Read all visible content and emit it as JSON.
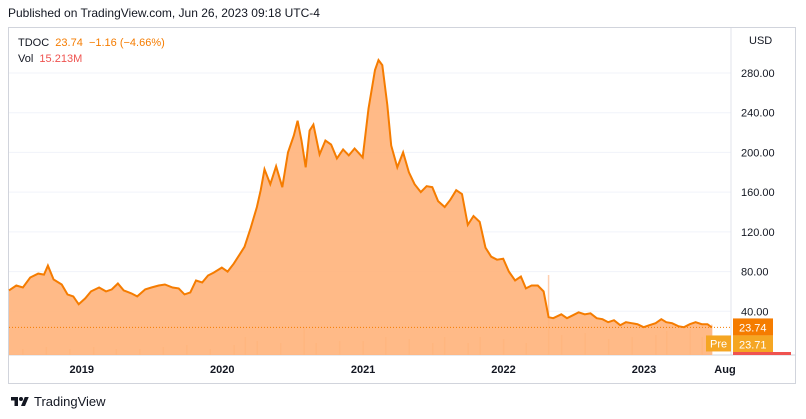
{
  "header": {
    "published": "Published on TradingView.com, Jun 26, 2023 09:18 UTC-4"
  },
  "legend": {
    "symbol": "TDOC",
    "price": "23.74",
    "change": "−1.16 (−4.66%)",
    "vol_label": "Vol",
    "vol_value": "15.213M"
  },
  "footer": {
    "brand": "TradingView"
  },
  "colors": {
    "line": "#f57c00",
    "fill": "#ffb27a",
    "pre": "#f5a623",
    "bar": "#ffcfae",
    "last_price": "#f57c00"
  },
  "chart_data": {
    "type": "area",
    "currency_label": "USD",
    "y_ticks": [
      "40.00",
      "80.00",
      "120.00",
      "160.00",
      "200.00",
      "240.00",
      "280.00"
    ],
    "x_ticks": [
      "2019",
      "2020",
      "2021",
      "2022",
      "2023",
      "Aug"
    ],
    "ylim": [
      0,
      320
    ],
    "last_price": {
      "label": "23.74",
      "value": 23.74
    },
    "premarket": {
      "label": "Pre",
      "price_label": "23.71",
      "value": 23.71
    },
    "series": [
      {
        "values": [
          [
            "2018-06-26",
            61
          ],
          [
            "2018-07-15",
            66
          ],
          [
            "2018-08-01",
            64
          ],
          [
            "2018-08-20",
            74
          ],
          [
            "2018-09-10",
            78
          ],
          [
            "2018-09-25",
            77
          ],
          [
            "2018-10-05",
            86
          ],
          [
            "2018-10-20",
            72
          ],
          [
            "2018-11-10",
            67
          ],
          [
            "2018-11-25",
            57
          ],
          [
            "2018-12-10",
            55
          ],
          [
            "2018-12-24",
            47
          ],
          [
            "2019-01-10",
            53
          ],
          [
            "2019-01-25",
            60
          ],
          [
            "2019-02-15",
            64
          ],
          [
            "2019-03-05",
            60
          ],
          [
            "2019-03-20",
            62
          ],
          [
            "2019-04-05",
            68
          ],
          [
            "2019-04-20",
            61
          ],
          [
            "2019-05-10",
            58
          ],
          [
            "2019-05-25",
            55
          ],
          [
            "2019-06-15",
            62
          ],
          [
            "2019-07-01",
            64
          ],
          [
            "2019-07-20",
            66
          ],
          [
            "2019-08-05",
            67
          ],
          [
            "2019-08-25",
            64
          ],
          [
            "2019-09-10",
            63
          ],
          [
            "2019-09-25",
            57
          ],
          [
            "2019-10-10",
            59
          ],
          [
            "2019-10-25",
            71
          ],
          [
            "2019-11-10",
            69
          ],
          [
            "2019-11-25",
            76
          ],
          [
            "2019-12-10",
            79
          ],
          [
            "2019-12-31",
            84
          ],
          [
            "2020-01-15",
            80
          ],
          [
            "2020-01-31",
            88
          ],
          [
            "2020-02-15",
            97
          ],
          [
            "2020-02-28",
            105
          ],
          [
            "2020-03-15",
            124
          ],
          [
            "2020-03-31",
            145
          ],
          [
            "2020-04-10",
            162
          ],
          [
            "2020-04-20",
            183
          ],
          [
            "2020-05-05",
            168
          ],
          [
            "2020-05-20",
            186
          ],
          [
            "2020-06-05",
            165
          ],
          [
            "2020-06-20",
            200
          ],
          [
            "2020-07-05",
            217
          ],
          [
            "2020-07-15",
            232
          ],
          [
            "2020-07-25",
            212
          ],
          [
            "2020-08-05",
            185
          ],
          [
            "2020-08-15",
            222
          ],
          [
            "2020-08-25",
            228
          ],
          [
            "2020-09-10",
            198
          ],
          [
            "2020-09-25",
            212
          ],
          [
            "2020-10-10",
            208
          ],
          [
            "2020-10-25",
            194
          ],
          [
            "2020-11-10",
            203
          ],
          [
            "2020-11-25",
            197
          ],
          [
            "2020-12-10",
            204
          ],
          [
            "2020-12-31",
            195
          ],
          [
            "2021-01-15",
            244
          ],
          [
            "2021-02-01",
            283
          ],
          [
            "2021-02-10",
            293
          ],
          [
            "2021-02-20",
            288
          ],
          [
            "2021-03-05",
            248
          ],
          [
            "2021-03-15",
            207
          ],
          [
            "2021-03-31",
            185
          ],
          [
            "2021-04-15",
            200
          ],
          [
            "2021-04-30",
            180
          ],
          [
            "2021-05-15",
            168
          ],
          [
            "2021-05-31",
            160
          ],
          [
            "2021-06-15",
            166
          ],
          [
            "2021-06-30",
            165
          ],
          [
            "2021-07-15",
            151
          ],
          [
            "2021-08-01",
            145
          ],
          [
            "2021-08-15",
            152
          ],
          [
            "2021-08-31",
            162
          ],
          [
            "2021-09-15",
            158
          ],
          [
            "2021-09-30",
            127
          ],
          [
            "2021-10-15",
            136
          ],
          [
            "2021-10-31",
            130
          ],
          [
            "2021-11-15",
            104
          ],
          [
            "2021-11-30",
            95
          ],
          [
            "2021-12-15",
            92
          ],
          [
            "2021-12-31",
            93
          ],
          [
            "2022-01-15",
            80
          ],
          [
            "2022-01-31",
            71
          ],
          [
            "2022-02-15",
            75
          ],
          [
            "2022-02-28",
            63
          ],
          [
            "2022-03-15",
            66
          ],
          [
            "2022-03-31",
            66
          ],
          [
            "2022-04-15",
            60
          ],
          [
            "2022-04-28",
            34
          ],
          [
            "2022-05-10",
            33
          ],
          [
            "2022-05-31",
            37
          ],
          [
            "2022-06-15",
            33
          ],
          [
            "2022-06-30",
            36
          ],
          [
            "2022-07-15",
            39
          ],
          [
            "2022-07-31",
            37
          ],
          [
            "2022-08-15",
            38
          ],
          [
            "2022-08-31",
            33
          ],
          [
            "2022-09-15",
            32
          ],
          [
            "2022-09-30",
            29
          ],
          [
            "2022-10-15",
            31
          ],
          [
            "2022-10-31",
            26
          ],
          [
            "2022-11-15",
            29
          ],
          [
            "2022-11-30",
            28
          ],
          [
            "2022-12-15",
            27
          ],
          [
            "2022-12-31",
            24
          ],
          [
            "2023-01-15",
            26
          ],
          [
            "2023-01-31",
            28
          ],
          [
            "2023-02-15",
            32
          ],
          [
            "2023-02-28",
            29
          ],
          [
            "2023-03-15",
            28
          ],
          [
            "2023-03-31",
            25
          ],
          [
            "2023-04-15",
            24
          ],
          [
            "2023-04-30",
            27
          ],
          [
            "2023-05-15",
            29
          ],
          [
            "2023-05-31",
            27
          ],
          [
            "2023-06-15",
            27
          ],
          [
            "2023-06-26",
            23.74
          ]
        ]
      }
    ],
    "volume": {
      "unit": "M",
      "values": [
        [
          "2018-08-01",
          3
        ],
        [
          "2018-10-01",
          4
        ],
        [
          "2018-12-01",
          3
        ],
        [
          "2019-02-01",
          4
        ],
        [
          "2019-04-01",
          3
        ],
        [
          "2019-06-01",
          3
        ],
        [
          "2019-08-01",
          4
        ],
        [
          "2019-10-01",
          5
        ],
        [
          "2019-12-01",
          3
        ],
        [
          "2020-02-01",
          5
        ],
        [
          "2020-03-01",
          9
        ],
        [
          "2020-04-01",
          7
        ],
        [
          "2020-06-01",
          6
        ],
        [
          "2020-08-01",
          14
        ],
        [
          "2020-09-01",
          6
        ],
        [
          "2020-11-01",
          7
        ],
        [
          "2021-01-01",
          7
        ],
        [
          "2021-03-01",
          9
        ],
        [
          "2021-05-01",
          8
        ],
        [
          "2021-07-01",
          6
        ],
        [
          "2021-08-01",
          9
        ],
        [
          "2021-10-01",
          6
        ],
        [
          "2021-11-01",
          9
        ],
        [
          "2022-01-01",
          8
        ],
        [
          "2022-03-01",
          6
        ],
        [
          "2022-04-28",
          40
        ],
        [
          "2022-06-01",
          10
        ],
        [
          "2022-08-01",
          11
        ],
        [
          "2022-10-01",
          8
        ],
        [
          "2022-12-01",
          9
        ],
        [
          "2023-02-01",
          10
        ],
        [
          "2023-03-01",
          12
        ],
        [
          "2023-05-01",
          13
        ],
        [
          "2023-06-01",
          9
        ],
        [
          "2023-06-26",
          15.213
        ]
      ]
    }
  }
}
